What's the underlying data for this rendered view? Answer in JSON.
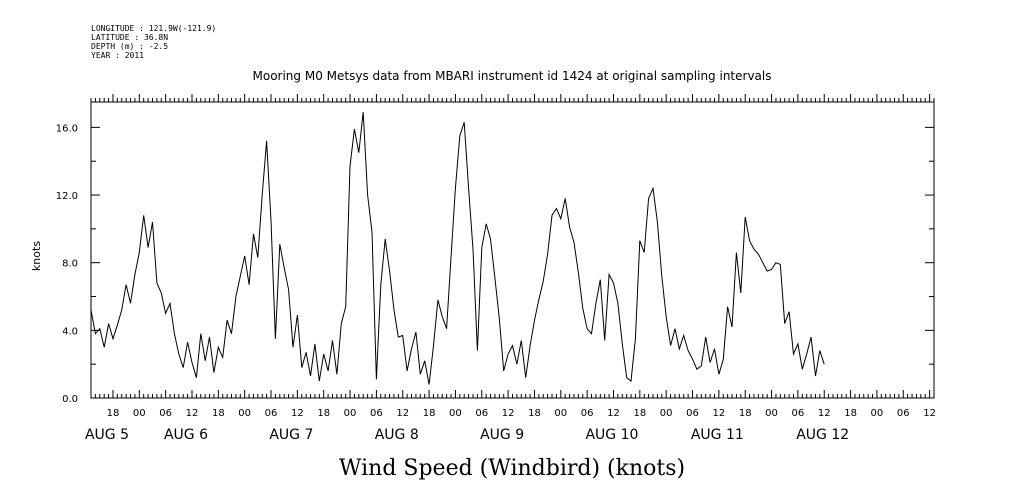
{
  "header": {
    "meta_lines": [
      "LONGITUDE : 121.9W(-121.9)",
      "LATITUDE : 36.8N",
      "DEPTH (m) : -2.5",
      "YEAR : 2011"
    ]
  },
  "chart_data": {
    "type": "line",
    "title": "Mooring M0 Metsys data from MBARI instrument id 1424 at original sampling intervals",
    "xlabel": "Wind Speed (Windbird) (knots)",
    "ylabel": "knots",
    "x_unit": "hours since AUG 4 00:00, 2011",
    "xlim": [
      13,
      205
    ],
    "ylim": [
      0,
      17.5
    ],
    "y_ticks": [
      "0.0",
      "4.0",
      "8.0",
      "12.0",
      "16.0"
    ],
    "y_tick_values": [
      0,
      4,
      8,
      12,
      16
    ],
    "x_hour_labels": [
      "18",
      "00",
      "06",
      "12",
      "18",
      "00",
      "06",
      "12",
      "18",
      "00",
      "06",
      "12",
      "18",
      "00",
      "06",
      "12",
      "18",
      "00",
      "06",
      "12",
      "18",
      "00",
      "06",
      "12",
      "18",
      "00",
      "06",
      "12",
      "18",
      "00",
      "06",
      "12"
    ],
    "x_hour_values": [
      18,
      24,
      30,
      36,
      42,
      48,
      54,
      60,
      66,
      72,
      78,
      84,
      90,
      96,
      102,
      108,
      114,
      120,
      126,
      132,
      138,
      144,
      150,
      156,
      162,
      168,
      174,
      180,
      186,
      192,
      198,
      204
    ],
    "date_labels": [
      {
        "text": "AUG  5",
        "x": 18
      },
      {
        "text": "AUG  6",
        "x": 36
      },
      {
        "text": "AUG  7",
        "x": 60
      },
      {
        "text": "AUG  8",
        "x": 84
      },
      {
        "text": "AUG  9",
        "x": 108
      },
      {
        "text": "AUG 10",
        "x": 132
      },
      {
        "text": "AUG 11",
        "x": 156
      },
      {
        "text": "AUG 12",
        "x": 180
      }
    ],
    "grid": false,
    "legend": "none",
    "series": [
      {
        "color": "#000000",
        "points": [
          [
            13,
            5.2
          ],
          [
            14,
            3.8
          ],
          [
            15,
            4.1
          ],
          [
            16,
            3.0
          ],
          [
            17,
            4.4
          ],
          [
            18,
            3.5
          ],
          [
            19,
            4.3
          ],
          [
            20,
            5.2
          ],
          [
            21,
            6.7
          ],
          [
            22,
            5.6
          ],
          [
            23,
            7.3
          ],
          [
            24,
            8.6
          ],
          [
            25,
            10.8
          ],
          [
            26,
            8.9
          ],
          [
            27,
            10.4
          ],
          [
            28,
            6.8
          ],
          [
            29,
            6.2
          ],
          [
            30,
            5.0
          ],
          [
            31,
            5.6
          ],
          [
            32,
            3.8
          ],
          [
            33,
            2.6
          ],
          [
            34,
            1.8
          ],
          [
            35,
            3.3
          ],
          [
            36,
            2.1
          ],
          [
            37,
            1.2
          ],
          [
            38,
            3.8
          ],
          [
            39,
            2.2
          ],
          [
            40,
            3.6
          ],
          [
            41,
            1.5
          ],
          [
            42,
            3.0
          ],
          [
            43,
            2.4
          ],
          [
            44,
            4.6
          ],
          [
            45,
            3.8
          ],
          [
            46,
            6.0
          ],
          [
            47,
            7.2
          ],
          [
            48,
            8.4
          ],
          [
            49,
            6.7
          ],
          [
            50,
            9.7
          ],
          [
            51,
            8.3
          ],
          [
            52,
            12.0
          ],
          [
            53,
            15.2
          ],
          [
            54,
            10.5
          ],
          [
            55,
            3.5
          ],
          [
            56,
            9.1
          ],
          [
            57,
            7.7
          ],
          [
            58,
            6.4
          ],
          [
            59,
            3.0
          ],
          [
            60,
            4.9
          ],
          [
            61,
            1.8
          ],
          [
            62,
            2.7
          ],
          [
            63,
            1.3
          ],
          [
            64,
            3.2
          ],
          [
            65,
            1.0
          ],
          [
            66,
            2.6
          ],
          [
            67,
            1.6
          ],
          [
            68,
            3.4
          ],
          [
            69,
            1.4
          ],
          [
            70,
            4.4
          ],
          [
            71,
            5.4
          ],
          [
            72,
            13.7
          ],
          [
            73,
            15.9
          ],
          [
            74,
            14.5
          ],
          [
            75,
            16.9
          ],
          [
            76,
            12.0
          ],
          [
            77,
            9.8
          ],
          [
            78,
            1.1
          ],
          [
            79,
            6.7
          ],
          [
            80,
            9.4
          ],
          [
            81,
            7.5
          ],
          [
            82,
            5.2
          ],
          [
            83,
            3.6
          ],
          [
            84,
            3.7
          ],
          [
            85,
            1.6
          ],
          [
            86,
            2.9
          ],
          [
            87,
            3.9
          ],
          [
            88,
            1.4
          ],
          [
            89,
            2.2
          ],
          [
            90,
            0.8
          ],
          [
            91,
            3.1
          ],
          [
            92,
            5.8
          ],
          [
            93,
            4.8
          ],
          [
            94,
            4.1
          ],
          [
            95,
            8.3
          ],
          [
            96,
            12.4
          ],
          [
            97,
            15.5
          ],
          [
            98,
            16.3
          ],
          [
            99,
            12.4
          ],
          [
            100,
            8.8
          ],
          [
            101,
            2.8
          ],
          [
            102,
            8.9
          ],
          [
            103,
            10.3
          ],
          [
            104,
            9.4
          ],
          [
            105,
            7.1
          ],
          [
            106,
            4.7
          ],
          [
            107,
            1.6
          ],
          [
            108,
            2.6
          ],
          [
            109,
            3.1
          ],
          [
            110,
            2.0
          ],
          [
            111,
            3.4
          ],
          [
            112,
            1.2
          ],
          [
            113,
            3.1
          ],
          [
            114,
            4.6
          ],
          [
            115,
            5.8
          ],
          [
            116,
            6.9
          ],
          [
            117,
            8.5
          ],
          [
            118,
            10.8
          ],
          [
            119,
            11.2
          ],
          [
            120,
            10.6
          ],
          [
            121,
            11.8
          ],
          [
            122,
            10.1
          ],
          [
            123,
            9.2
          ],
          [
            124,
            7.4
          ],
          [
            125,
            5.3
          ],
          [
            126,
            4.1
          ],
          [
            127,
            3.8
          ],
          [
            128,
            5.6
          ],
          [
            129,
            7.0
          ],
          [
            130,
            3.4
          ],
          [
            131,
            7.3
          ],
          [
            132,
            6.8
          ],
          [
            133,
            5.6
          ],
          [
            134,
            3.2
          ],
          [
            135,
            1.2
          ],
          [
            136,
            1.0
          ],
          [
            137,
            3.5
          ],
          [
            138,
            9.3
          ],
          [
            139,
            8.6
          ],
          [
            140,
            11.8
          ],
          [
            141,
            12.4
          ],
          [
            142,
            10.4
          ],
          [
            143,
            7.2
          ],
          [
            144,
            4.8
          ],
          [
            145,
            3.1
          ],
          [
            146,
            4.1
          ],
          [
            147,
            2.9
          ],
          [
            148,
            3.7
          ],
          [
            149,
            2.8
          ],
          [
            150,
            2.3
          ],
          [
            151,
            1.7
          ],
          [
            152,
            1.9
          ],
          [
            153,
            3.6
          ],
          [
            154,
            2.1
          ],
          [
            155,
            2.9
          ],
          [
            156,
            1.4
          ],
          [
            157,
            2.3
          ],
          [
            158,
            5.4
          ],
          [
            159,
            4.2
          ],
          [
            160,
            8.6
          ],
          [
            161,
            6.2
          ],
          [
            162,
            10.7
          ],
          [
            163,
            9.3
          ],
          [
            164,
            8.8
          ],
          [
            165,
            8.5
          ],
          [
            166,
            8.0
          ],
          [
            167,
            7.5
          ],
          [
            168,
            7.6
          ],
          [
            169,
            8.0
          ],
          [
            170,
            7.9
          ],
          [
            171,
            4.4
          ],
          [
            172,
            5.1
          ],
          [
            173,
            2.6
          ],
          [
            174,
            3.2
          ],
          [
            175,
            1.7
          ],
          [
            176,
            2.6
          ],
          [
            177,
            3.6
          ],
          [
            178,
            1.3
          ],
          [
            179,
            2.8
          ],
          [
            180,
            2.0
          ]
        ]
      }
    ]
  }
}
